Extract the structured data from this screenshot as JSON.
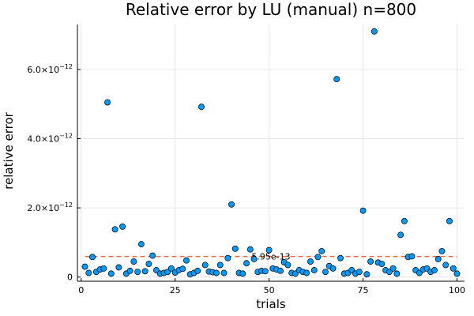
{
  "chart_data": {
    "type": "scatter",
    "title": "Relative error by LU (manual)  n=800",
    "xlabel": "trials",
    "ylabel": "relative error",
    "xlim": [
      -1,
      102
    ],
    "ylim": [
      -1.2e-13,
      7.3e-12
    ],
    "x_ticks": [
      0,
      25,
      50,
      75,
      100
    ],
    "x_tick_labels": [
      "0",
      "25",
      "50",
      "75",
      "100"
    ],
    "y_ticks": [
      0,
      2e-12,
      4e-12,
      6e-12
    ],
    "y_tick_labels": [
      {
        "mantissa": "0",
        "exponent": ""
      },
      {
        "mantissa": "2.0×10",
        "exponent": "−12"
      },
      {
        "mantissa": "4.0×10",
        "exponent": "−12"
      },
      {
        "mantissa": "6.0×10",
        "exponent": "−12"
      }
    ],
    "grid": true,
    "legend": "none",
    "marker_color": "#009AFA",
    "mean_line_color": "#E26F46",
    "mean_value": 5.95e-13,
    "mean_label": "5.95e-13",
    "points": [
      [
        1,
        3e-13
      ],
      [
        2,
        1.2e-13
      ],
      [
        3,
        5.8e-13
      ],
      [
        4,
        1.5e-13
      ],
      [
        5,
        2.2e-13
      ],
      [
        6,
        2.5e-13
      ],
      [
        7,
        5.05e-12
      ],
      [
        8,
        1e-13
      ],
      [
        9,
        1.38e-12
      ],
      [
        10,
        2.8e-13
      ],
      [
        11,
        1.46e-12
      ],
      [
        12,
        1e-13
      ],
      [
        13,
        1.8e-13
      ],
      [
        14,
        4.5e-13
      ],
      [
        15,
        1.5e-13
      ],
      [
        16,
        9.5e-13
      ],
      [
        17,
        1.7e-13
      ],
      [
        18,
        3.8e-13
      ],
      [
        19,
        6.2e-13
      ],
      [
        20,
        2e-13
      ],
      [
        21,
        1e-13
      ],
      [
        22,
        1.2e-13
      ],
      [
        23,
        1.5e-13
      ],
      [
        24,
        2.5e-13
      ],
      [
        25,
        1.3e-13
      ],
      [
        26,
        2e-13
      ],
      [
        27,
        2.4e-13
      ],
      [
        28,
        4.8e-13
      ],
      [
        29,
        8e-14
      ],
      [
        30,
        1.2e-13
      ],
      [
        31,
        1.8e-13
      ],
      [
        32,
        4.92e-12
      ],
      [
        33,
        3.5e-13
      ],
      [
        34,
        1.6e-13
      ],
      [
        35,
        1.4e-13
      ],
      [
        36,
        1.2e-13
      ],
      [
        37,
        3.5e-13
      ],
      [
        38,
        1.2e-13
      ],
      [
        39,
        5.5e-13
      ],
      [
        40,
        2.1e-12
      ],
      [
        41,
        8.2e-13
      ],
      [
        42,
        1.2e-13
      ],
      [
        43,
        1e-13
      ],
      [
        44,
        4e-13
      ],
      [
        45,
        8e-13
      ],
      [
        46,
        5.2e-13
      ],
      [
        47,
        1.5e-13
      ],
      [
        48,
        1.8e-13
      ],
      [
        49,
        1.7e-13
      ],
      [
        50,
        7.8e-13
      ],
      [
        51,
        2.5e-13
      ],
      [
        52,
        2.2e-13
      ],
      [
        53,
        1.8e-13
      ],
      [
        54,
        4.3e-13
      ],
      [
        55,
        3.5e-13
      ],
      [
        56,
        1.2e-13
      ],
      [
        57,
        1e-13
      ],
      [
        58,
        2e-13
      ],
      [
        59,
        1.5e-13
      ],
      [
        60,
        1.2e-13
      ],
      [
        61,
        4.5e-13
      ],
      [
        62,
        2e-13
      ],
      [
        63,
        5.8e-13
      ],
      [
        64,
        7.5e-13
      ],
      [
        65,
        1.5e-13
      ],
      [
        66,
        3.2e-13
      ],
      [
        67,
        2.5e-13
      ],
      [
        68,
        5.72e-12
      ],
      [
        69,
        5.5e-13
      ],
      [
        70,
        1e-13
      ],
      [
        71,
        1.2e-13
      ],
      [
        72,
        2e-13
      ],
      [
        73,
        1e-13
      ],
      [
        74,
        1.5e-13
      ],
      [
        75,
        1.92e-12
      ],
      [
        76,
        8e-14
      ],
      [
        77,
        4.5e-13
      ],
      [
        78,
        7.1e-12
      ],
      [
        79,
        4.2e-13
      ],
      [
        80,
        3.8e-13
      ],
      [
        81,
        2e-13
      ],
      [
        82,
        1.5e-13
      ],
      [
        83,
        2.5e-13
      ],
      [
        84,
        1e-13
      ],
      [
        85,
        1.22e-12
      ],
      [
        86,
        1.62e-12
      ],
      [
        87,
        5.8e-13
      ],
      [
        88,
        6e-13
      ],
      [
        89,
        2e-13
      ],
      [
        90,
        1.2e-13
      ],
      [
        91,
        2.2e-13
      ],
      [
        92,
        2.5e-13
      ],
      [
        93,
        1.5e-13
      ],
      [
        94,
        2e-13
      ],
      [
        95,
        5.2e-13
      ],
      [
        96,
        7.5e-13
      ],
      [
        97,
        3.5e-13
      ],
      [
        98,
        1.62e-12
      ],
      [
        99,
        2.5e-13
      ],
      [
        100,
        1e-13
      ]
    ]
  }
}
